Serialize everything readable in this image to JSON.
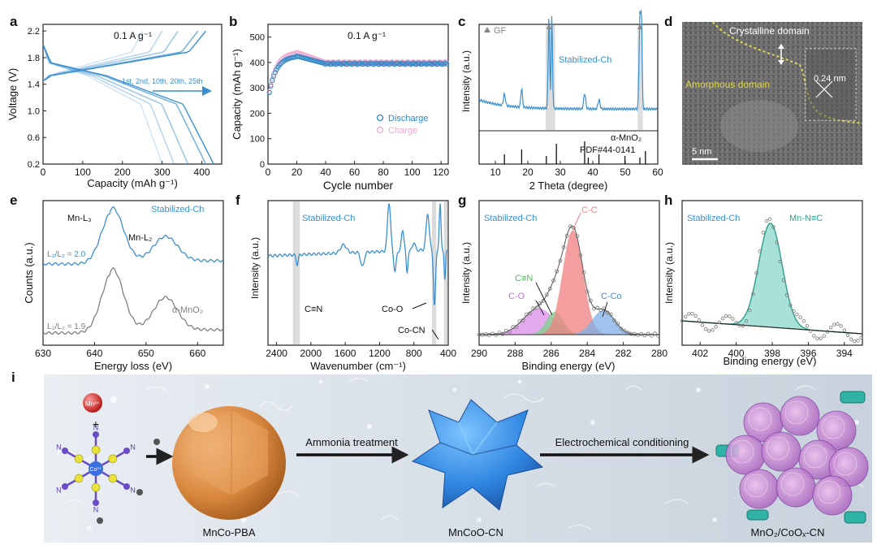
{
  "figure": {
    "panel_letters": [
      "a",
      "b",
      "c",
      "d",
      "e",
      "f",
      "g",
      "h",
      "i"
    ]
  },
  "chart_data": [
    {
      "panel": "a",
      "type": "line",
      "annotation": "0.1 A g⁻¹",
      "cycle_label": "1st, 2nd, 10th, 20th, 25th",
      "xlabel": "Capacity (mAh g⁻¹)",
      "ylabel": "Voltage (V)",
      "xlim": [
        0,
        450
      ],
      "ylim": [
        0.2,
        2.3
      ],
      "xticks": [
        0,
        100,
        200,
        300,
        400
      ],
      "yticks": [
        0.2,
        0.6,
        1.0,
        1.4,
        1.8,
        2.2
      ],
      "series": [
        {
          "name": "1st",
          "discharge_cap": 300,
          "charge_cap": 250
        },
        {
          "name": "2nd",
          "discharge_cap": 330,
          "charge_cap": 300
        },
        {
          "name": "10th",
          "discharge_cap": 365,
          "charge_cap": 340
        },
        {
          "name": "20th",
          "discharge_cap": 410,
          "charge_cap": 390
        },
        {
          "name": "25th",
          "discharge_cap": 430,
          "charge_cap": 410
        }
      ],
      "color": "#3a8fd0"
    },
    {
      "panel": "b",
      "type": "scatter",
      "annotation": "0.1 A g⁻¹",
      "xlabel": "Cycle number",
      "ylabel": "Capacity (mAh g⁻¹)",
      "xlim": [
        0,
        125
      ],
      "ylim": [
        0,
        550
      ],
      "xticks": [
        0,
        20,
        40,
        60,
        80,
        100,
        120
      ],
      "yticks": [
        0,
        100,
        200,
        300,
        400,
        500
      ],
      "series": [
        {
          "name": "Discharge",
          "color": "#2f88c8",
          "plateau": 395,
          "peak": 425
        },
        {
          "name": "Charge",
          "color": "#f0a8d0",
          "plateau": 400,
          "peak": 440
        }
      ]
    },
    {
      "panel": "c",
      "type": "line",
      "legend": "GF",
      "sample": "Stabilized-Ch",
      "reference": "α-MnO₂",
      "pdf": "PDF#44-0141",
      "xlabel": "2 Theta (degree)",
      "ylabel": "Intensity (a.u.)",
      "xlim": [
        5,
        60
      ],
      "xticks": [
        10,
        20,
        30,
        40,
        50,
        60
      ],
      "peaks": [
        12.8,
        18.1,
        26.5,
        28.8,
        37.5,
        41.9,
        49.9,
        54.5,
        56.2
      ],
      "ref_lines": [
        12.8,
        18.1,
        25.7,
        28.8,
        37.5,
        38.6,
        41.9,
        49.9,
        54.5,
        56.2
      ],
      "color": "#3a8fd0"
    },
    {
      "panel": "d",
      "type": "image",
      "labels": [
        "Crystalline domain",
        "Amorphous domain",
        "0.24 nm",
        "5 nm"
      ]
    },
    {
      "panel": "e",
      "type": "line",
      "xlabel": "Energy loss (eV)",
      "ylabel": "Counts (a.u.)",
      "xlim": [
        630,
        665
      ],
      "xticks": [
        630,
        640,
        650,
        660
      ],
      "peaks": [
        "Mn-L₃",
        "Mn-L₂"
      ],
      "series": [
        {
          "name": "Stabilized-Ch",
          "ratio": "L₃/L₂ = 2.0",
          "color": "#3a8fd0"
        },
        {
          "name": "α-MnO₂",
          "ratio": "L₃/L₂ = 1.9",
          "color": "#808080"
        }
      ]
    },
    {
      "panel": "f",
      "type": "line",
      "sample": "Stabilized-Ch",
      "xlabel": "Wavenumber (cm⁻¹)",
      "ylabel": "Intensity (a.u.)",
      "xlim": [
        2500,
        400
      ],
      "xticks": [
        2400,
        2000,
        1600,
        1200,
        800,
        400
      ],
      "annotations": [
        "C≡N",
        "Co-O",
        "Co-CN"
      ],
      "color": "#3a8fd0"
    },
    {
      "panel": "g",
      "type": "area",
      "sample": "Stabilized-Ch",
      "xlabel": "Binding energy (eV)",
      "ylabel": "Intensity (a.u.)",
      "xlim": [
        290,
        280
      ],
      "xticks": [
        290,
        288,
        286,
        284,
        282,
        280
      ],
      "components": [
        {
          "name": "C-C",
          "center": 284.8,
          "color": "#ef8080"
        },
        {
          "name": "C≡N",
          "center": 285.8,
          "color": "#7fd28a"
        },
        {
          "name": "C-O",
          "center": 286.7,
          "color": "#d98ee6"
        },
        {
          "name": "C-Co",
          "center": 283.1,
          "color": "#7fb0e6"
        }
      ]
    },
    {
      "panel": "h",
      "type": "area",
      "sample": "Stabilized-Ch",
      "xlabel": "Binding energy (eV)",
      "ylabel": "Intensity (a.u.)",
      "xlim": [
        403,
        393
      ],
      "xticks": [
        402,
        400,
        398,
        396,
        394
      ],
      "components": [
        {
          "name": "Mn-N≡C",
          "center": 398.1,
          "color": "#5fc9b8"
        }
      ]
    }
  ],
  "schematic": {
    "label": "i",
    "ion": "Mn²⁺",
    "plus": "+",
    "complex_center": "Co³⁺",
    "ligand": "N",
    "counter_ion": "K",
    "steps": [
      "Ammonia treatment",
      "Electrochemical conditioning"
    ],
    "products": [
      "MnCo-PBA",
      "MnCoO-CN",
      "MnO₂/CoOₓ-CN"
    ]
  }
}
